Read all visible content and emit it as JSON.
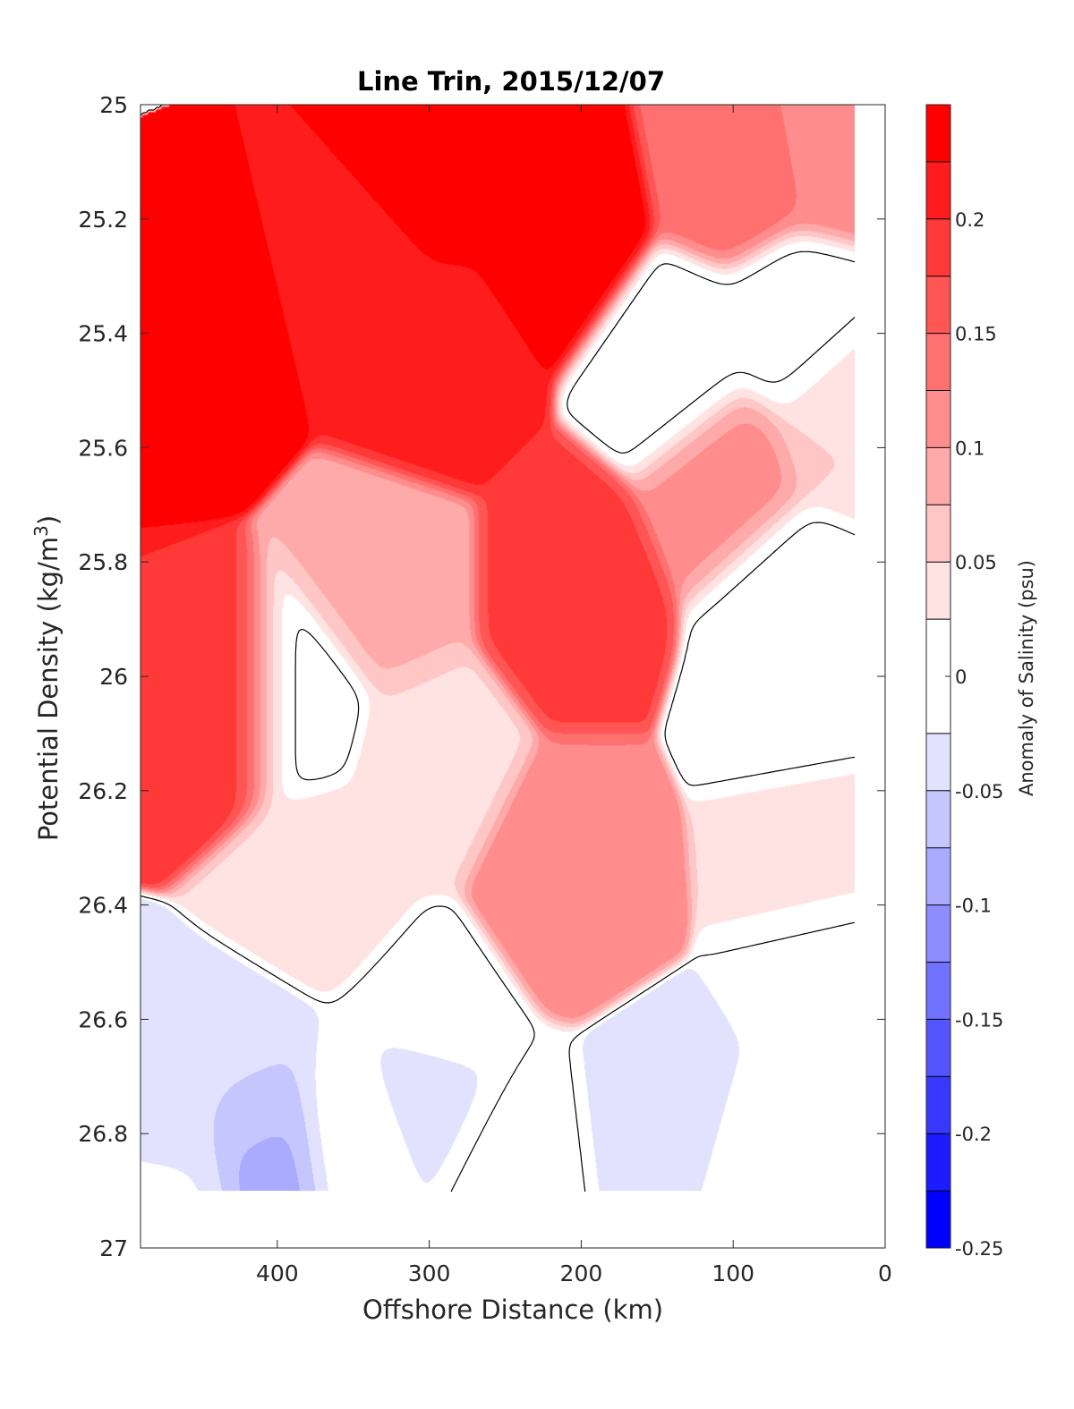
{
  "chart_data": {
    "type": "heatmap",
    "subtype": "filled-contour",
    "title": "Line Trin, 2015/12/07",
    "xlabel": "Offshore Distance (km)",
    "ylabel_main": "Potential Density (kg/m",
    "ylabel_sup": "3",
    "ylabel_end": ")",
    "xlim": [
      490,
      0
    ],
    "x_reversed": true,
    "ylim": [
      25,
      27
    ],
    "y_reversed": true,
    "xticks": [
      400,
      300,
      200,
      100,
      0
    ],
    "xtick_labels": [
      "400",
      "300",
      "200",
      "100",
      "0"
    ],
    "yticks": [
      25,
      25.2,
      25.4,
      25.6,
      25.8,
      26,
      26.2,
      26.4,
      26.6,
      26.8,
      27
    ],
    "ytick_labels": [
      "25",
      "25.2",
      "25.4",
      "25.6",
      "25.8",
      "26",
      "26.2",
      "26.4",
      "26.6",
      "26.8",
      "27"
    ],
    "colorbar": {
      "label": "Anomaly of Salinity (psu)",
      "range": [
        -0.25,
        0.25
      ],
      "levels": [
        -0.25,
        -0.225,
        -0.2,
        -0.175,
        -0.15,
        -0.125,
        -0.1,
        -0.075,
        -0.05,
        -0.025,
        0.025,
        0.05,
        0.075,
        0.1,
        0.125,
        0.15,
        0.175,
        0.2,
        0.225,
        0.25
      ],
      "colors": [
        "#0000ff",
        "#1c1cff",
        "#3838ff",
        "#5555ff",
        "#7171ff",
        "#8d8dff",
        "#aaaaff",
        "#c6c6ff",
        "#e2e2ff",
        "#ffffff",
        "#ffe2e2",
        "#ffc6c6",
        "#ffaaaa",
        "#ff8d8d",
        "#ff7171",
        "#ff5555",
        "#ff3838",
        "#ff1c1c",
        "#ff0000"
      ],
      "ticks": [
        -0.25,
        -0.2,
        -0.15,
        -0.1,
        -0.05,
        0,
        0.05,
        0.1,
        0.15,
        0.2
      ],
      "tick_labels": [
        "-0.25",
        "-0.2",
        "-0.15",
        "-0.1",
        "-0.05",
        "0",
        "0.05",
        "0.1",
        "0.15",
        "0.2"
      ]
    },
    "data_extent_x": [
      490,
      20
    ],
    "data_extent_y": [
      25,
      26.9
    ],
    "zero_contour_color": "#000000",
    "salinity_anomaly_features": [
      {
        "x": 445,
        "y": 25.4,
        "value": 0.25
      },
      {
        "x": 430,
        "y": 26.05,
        "value": 0.2
      },
      {
        "x": 300,
        "y": 25.1,
        "value": 0.25
      },
      {
        "x": 300,
        "y": 25.45,
        "value": 0.21
      },
      {
        "x": 215,
        "y": 25.2,
        "value": 0.25
      },
      {
        "x": 210,
        "y": 25.85,
        "value": 0.18
      },
      {
        "x": 210,
        "y": 26.35,
        "value": 0.12
      },
      {
        "x": 350,
        "y": 25.3,
        "value": 0.2
      },
      {
        "x": 255,
        "y": 25.05,
        "value": 0.23
      },
      {
        "x": 100,
        "y": 25.1,
        "value": 0.14
      },
      {
        "x": 100,
        "y": 25.65,
        "value": 0.11
      },
      {
        "x": 40,
        "y": 25.05,
        "value": 0.12
      },
      {
        "x": 30,
        "y": 25.55,
        "value": 0.05
      },
      {
        "x": 50,
        "y": 26.3,
        "value": 0.045
      },
      {
        "x": 330,
        "y": 25.85,
        "value": 0.08
      },
      {
        "x": 300,
        "y": 26.15,
        "value": 0.045
      },
      {
        "x": 370,
        "y": 26.35,
        "value": 0.04
      },
      {
        "x": 135,
        "y": 25.45,
        "value": -0.01
      },
      {
        "x": 60,
        "y": 25.4,
        "value": -0.01
      },
      {
        "x": 60,
        "y": 25.85,
        "value": -0.01
      },
      {
        "x": 60,
        "y": 26.05,
        "value": -0.015
      },
      {
        "x": 390,
        "y": 26.05,
        "value": -0.015
      },
      {
        "x": 465,
        "y": 26.75,
        "value": -0.045
      },
      {
        "x": 420,
        "y": 26.72,
        "value": -0.045
      },
      {
        "x": 410,
        "y": 26.82,
        "value": -0.085
      },
      {
        "x": 305,
        "y": 26.7,
        "value": -0.04
      },
      {
        "x": 145,
        "y": 26.8,
        "value": -0.05
      },
      {
        "x": 300,
        "y": 26.62,
        "value": -0.01
      },
      {
        "x": 40,
        "y": 26.5,
        "value": -0.005
      },
      {
        "x": 350,
        "y": 26.78,
        "value": -0.01
      },
      {
        "x": 470,
        "y": 26.88,
        "value": -0.02
      },
      {
        "x": 240,
        "y": 26.85,
        "value": 0.005
      },
      {
        "x": 90,
        "y": 26.87,
        "value": -0.01
      }
    ]
  }
}
